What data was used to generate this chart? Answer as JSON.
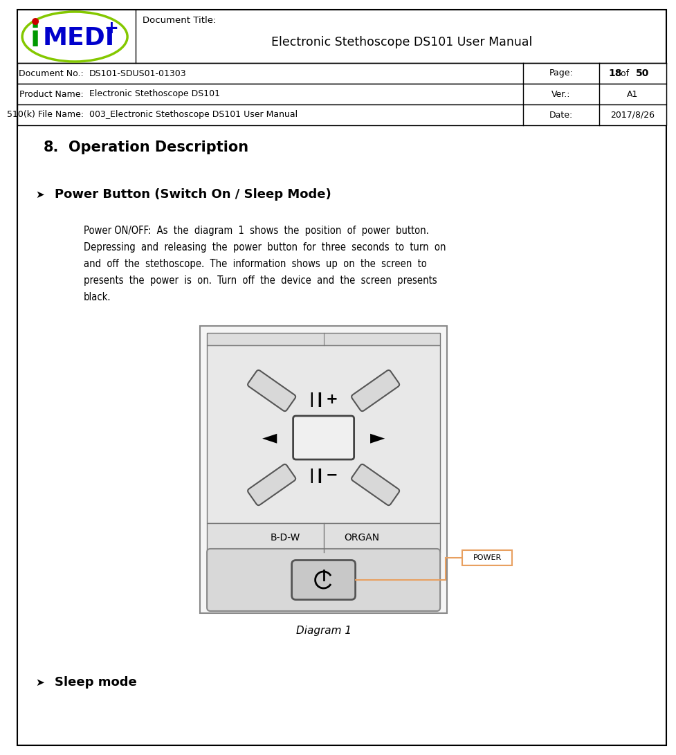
{
  "page_width": 9.46,
  "page_height": 10.71,
  "bg_color": "#ffffff",
  "doc_title_label": "Document Title:",
  "doc_title": "Electronic Stethoscope DS101 User Manual",
  "row1_label": "Document No.:",
  "row1_value": "DS101-SDUS01-01303",
  "row1_right_label": "Page:",
  "row1_page_num": "18",
  "row1_page_of": "of",
  "row1_page_total": "50",
  "row2_label": "Product Name:",
  "row2_value": "Electronic Stethoscope DS101",
  "row2_right_label": "Ver.:",
  "row2_right_value": "A1",
  "row3_label": "510(k) File Name:",
  "row3_value": "003_Electronic Stethoscope DS101 User Manual",
  "row3_right_label": "Date:",
  "row3_right_value": "2017/8/26",
  "section_num": "8.",
  "section_title": "Operation Description",
  "sub_bullet": "➤",
  "sub_title": "Power Button (Switch On / Sleep Mode)",
  "body_lines": [
    "Power ON/OFF:  As  the  diagram  1  shows  the  position  of  power  button.",
    "Depressing  and  releasing  the  power  button  for  three  seconds  to  turn  on",
    "and  off  the  stethoscope.  The  information  shows  up  on  the  screen  to",
    "presents  the  power  is  on.  Turn  off  the  device  and  the  screen  presents",
    "black."
  ],
  "diagram_caption": "Diagram 1",
  "sleep_title": "Sleep mode",
  "power_label": "POWER",
  "orange_color": "#e8a060",
  "logo_green": "#84c800",
  "logo_blue": "#0000cc",
  "logo_red": "#cc0000",
  "logo_green_text": "#009900"
}
